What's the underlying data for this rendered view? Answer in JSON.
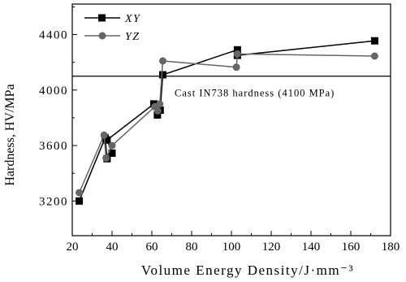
{
  "chart_data": {
    "type": "line",
    "xlabel": "Volume Energy Density/J·mm⁻³",
    "ylabel": "Hardness, HV/MPa",
    "xlim": [
      20,
      180
    ],
    "ylim": [
      2950,
      4620
    ],
    "xticks": [
      20,
      40,
      60,
      80,
      100,
      120,
      140,
      160,
      180
    ],
    "yticks": [
      3200,
      3600,
      4000,
      4400
    ],
    "grid": false,
    "legend_position": "top-left",
    "series": [
      {
        "name": "XY",
        "marker": "square",
        "color": "#000000",
        "x": [
          23.5,
          36.5,
          37.5,
          40,
          37.5,
          61,
          62.8,
          64.2,
          65.5,
          103,
          103,
          172
        ],
        "y": [
          3200,
          3655,
          3505,
          3545,
          3640,
          3900,
          3820,
          3855,
          4110,
          4290,
          4250,
          4355
        ]
      },
      {
        "name": "YZ",
        "marker": "circle",
        "color": "#666666",
        "x": [
          23.5,
          36,
          37,
          40,
          61.5,
          63,
          64,
          65.5,
          102.5,
          103,
          172
        ],
        "y": [
          3260,
          3675,
          3510,
          3600,
          3880,
          3850,
          3900,
          4210,
          4165,
          4260,
          4245
        ]
      }
    ],
    "reference_line": {
      "y": 4100,
      "label": "Cast IN738 hardness (4100 MPa)"
    }
  }
}
